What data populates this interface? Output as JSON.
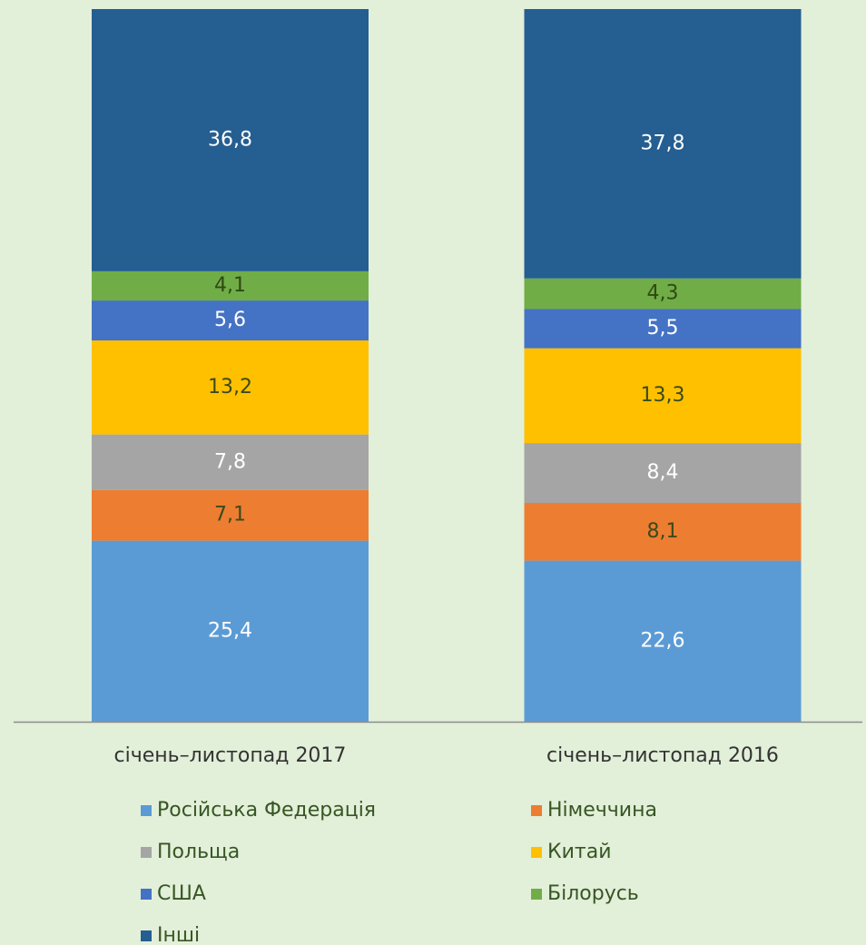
{
  "chart_data": {
    "type": "stacked_bar",
    "categories": [
      "січень–листопад 2017",
      "січень–листопад 2016"
    ],
    "ylim": [
      0,
      100
    ],
    "series": [
      {
        "name": "Російська Федерація",
        "color": "#5b9bd5",
        "label_color": "#ffffff",
        "values": [
          25.4,
          22.6
        ],
        "value_labels": [
          "25,4",
          "22,6"
        ]
      },
      {
        "name": "Німеччина",
        "color": "#ed7d31",
        "label_color": "#3a4a1a",
        "values": [
          7.1,
          8.1
        ],
        "value_labels": [
          "7,1",
          "8,1"
        ]
      },
      {
        "name": "Польща",
        "color": "#a5a5a5",
        "label_color": "#ffffff",
        "values": [
          7.8,
          8.4
        ],
        "value_labels": [
          "7,8",
          "8,4"
        ]
      },
      {
        "name": "Китай",
        "color": "#ffc000",
        "label_color": "#3a4a1a",
        "values": [
          13.2,
          13.3
        ],
        "value_labels": [
          "13,2",
          "13,3"
        ]
      },
      {
        "name": "США",
        "color": "#4472c4",
        "label_color": "#ffffff",
        "values": [
          5.6,
          5.5
        ],
        "value_labels": [
          "5,6",
          "5,5"
        ]
      },
      {
        "name": "Білорусь",
        "color": "#70ad47",
        "label_color": "#2f4a12",
        "values": [
          4.1,
          4.3
        ],
        "value_labels": [
          "4,1",
          "4,3"
        ]
      },
      {
        "name": "Інші",
        "color": "#255e91",
        "label_color": "#ffffff",
        "values": [
          36.8,
          37.8
        ],
        "value_labels": [
          "36,8",
          "37,8"
        ]
      }
    ]
  }
}
